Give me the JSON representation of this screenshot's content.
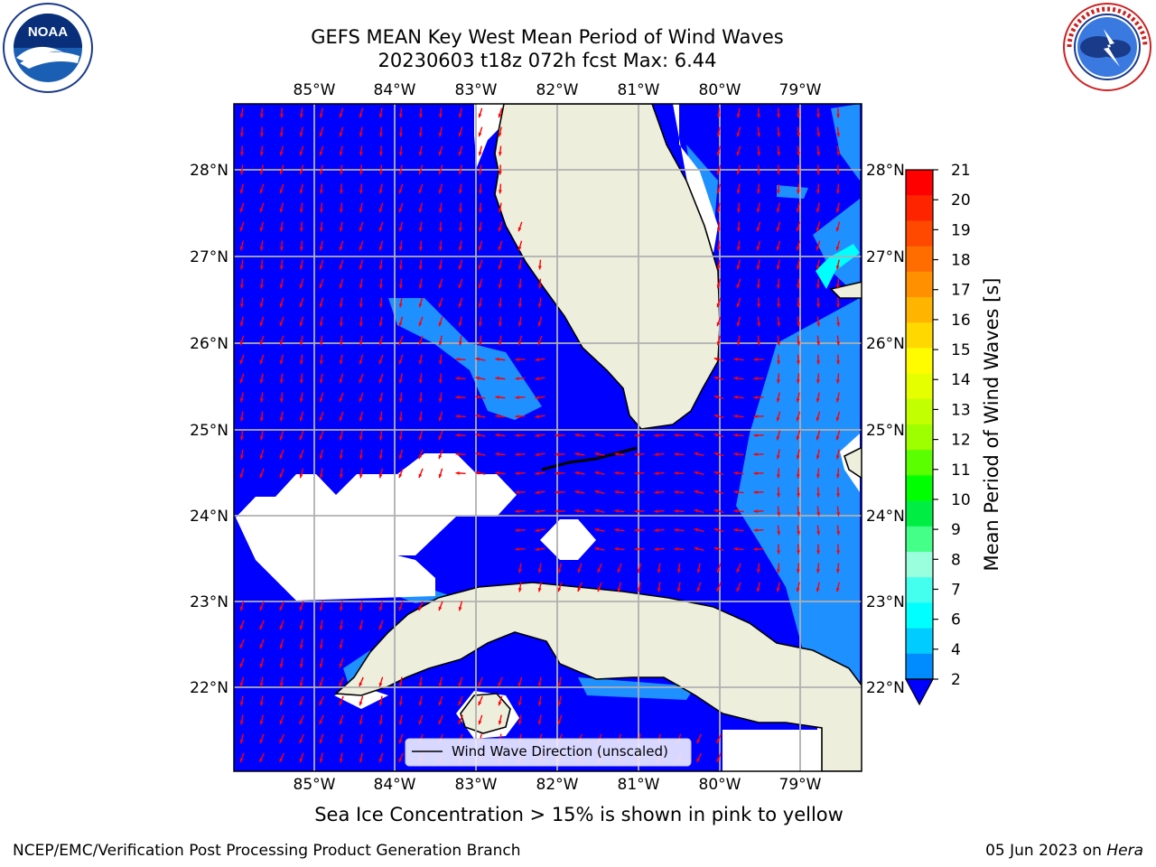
{
  "header": {
    "title_line1": "GEFS MEAN Key West Mean Period of Wind Waves",
    "title_line2": "20230603 t18z 072h fcst   Max: 6.44"
  },
  "logos": {
    "left": {
      "name": "noaa-logo",
      "text": "NOAA",
      "ring_text": "NATIONAL OCEANIC AND ATMOSPHERIC ADMINISTRATION · U.S. DEPARTMENT OF COMMERCE"
    },
    "right": {
      "name": "nws-logo",
      "ring_text": "NATIONAL WEATHER SERVICE"
    }
  },
  "map": {
    "lon_labels": [
      "85°W",
      "84°W",
      "83°W",
      "82°W",
      "81°W",
      "80°W",
      "79°W"
    ],
    "lat_labels": [
      "28°N",
      "27°N",
      "26°N",
      "25°N",
      "24°N",
      "23°N",
      "22°N"
    ],
    "legend": "Wind Wave Direction (unscaled)",
    "colors": {
      "ocean": "#0000ff",
      "ocean_light": "#1e90ff",
      "land": "#eeeedd",
      "arrow": "#ff0000",
      "grid": "#b0b0b0"
    }
  },
  "colorbar": {
    "label": "Mean Period of Wind Waves [s]",
    "ticks": [
      "21",
      "20",
      "19",
      "18",
      "17",
      "16",
      "15",
      "14",
      "13",
      "12",
      "11",
      "10",
      "9",
      "8",
      "7",
      "6",
      "4",
      "2"
    ],
    "colors": [
      "#ff0000",
      "#ff2400",
      "#ff4800",
      "#ff6c00",
      "#ff9000",
      "#ffb400",
      "#ffd800",
      "#fffc00",
      "#e6ff00",
      "#c2ff00",
      "#9eff00",
      "#5aff00",
      "#00ff00",
      "#00ee44",
      "#44ff88",
      "#99ffdd",
      "#44ffee",
      "#00ffff",
      "#00ccff",
      "#008cff"
    ]
  },
  "caption": "Sea Ice Concentration > 15% is shown in pink to yellow",
  "footer": {
    "left": "NCEP/EMC/Verification Post Processing Product Generation Branch",
    "right_prefix": "05 Jun 2023 on ",
    "right_emph": "Hera"
  }
}
